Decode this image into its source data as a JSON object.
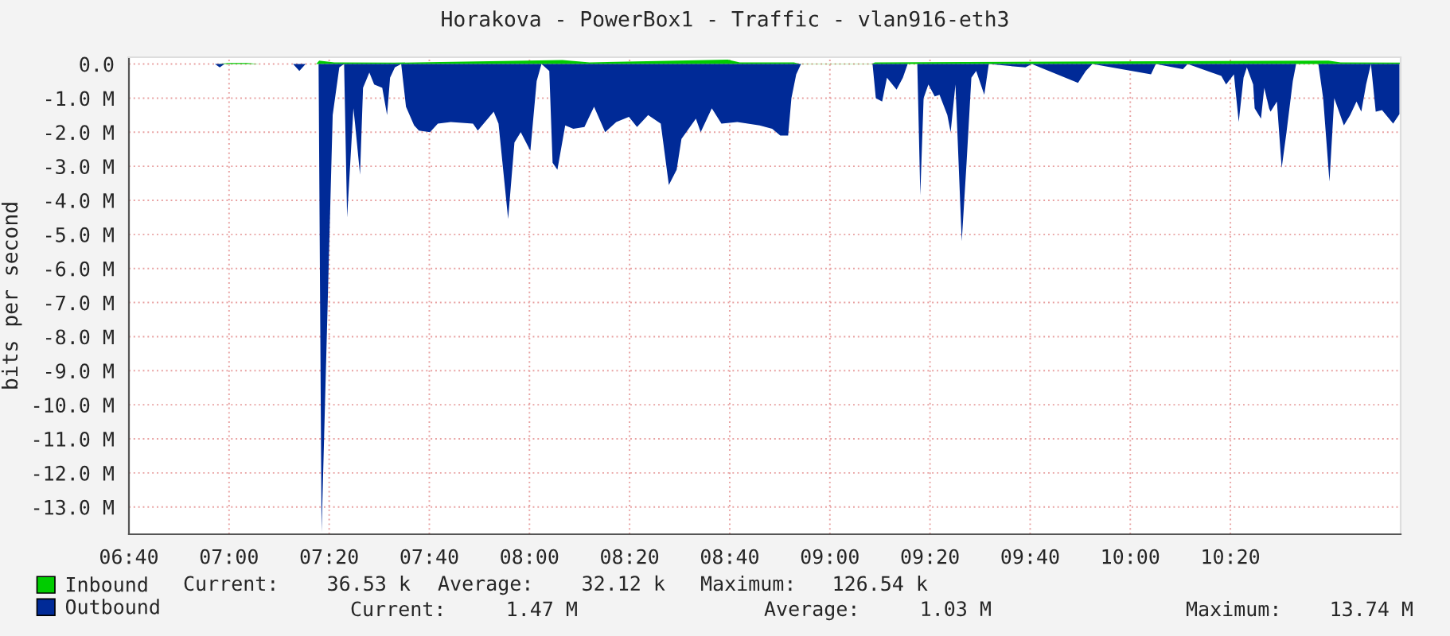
{
  "chart_data": {
    "type": "area",
    "title": "Horakova - PowerBox1 - Traffic - vlan916-eth3",
    "ylabel": "bits per second",
    "xlim": [
      6.6667,
      10.9
    ],
    "ylim": [
      -13.8,
      0.2
    ],
    "xticks": [
      {
        "value": 6.6667,
        "label": "06:40"
      },
      {
        "value": 7,
        "label": "07:00"
      },
      {
        "value": 7.3333,
        "label": "07:20"
      },
      {
        "value": 7.6667,
        "label": "07:40"
      },
      {
        "value": 8,
        "label": "08:00"
      },
      {
        "value": 8.3333,
        "label": "08:20"
      },
      {
        "value": 8.6667,
        "label": "08:40"
      },
      {
        "value": 9,
        "label": "09:00"
      },
      {
        "value": 9.3333,
        "label": "09:20"
      },
      {
        "value": 9.6667,
        "label": "09:40"
      },
      {
        "value": 10,
        "label": "10:00"
      },
      {
        "value": 10.3333,
        "label": "10:20"
      }
    ],
    "yticks": [
      {
        "value": 0,
        "label": "0.0"
      },
      {
        "value": -1,
        "label": "-1.0 M"
      },
      {
        "value": -2,
        "label": "-2.0 M"
      },
      {
        "value": -3,
        "label": "-3.0 M"
      },
      {
        "value": -4,
        "label": "-4.0 M"
      },
      {
        "value": -5,
        "label": "-5.0 M"
      },
      {
        "value": -6,
        "label": "-6.0 M"
      },
      {
        "value": -7,
        "label": "-7.0 M"
      },
      {
        "value": -8,
        "label": "-8.0 M"
      },
      {
        "value": -9,
        "label": "-9.0 M"
      },
      {
        "value": -10,
        "label": "-10.0 M"
      },
      {
        "value": -11,
        "label": "-11.0 M"
      },
      {
        "value": -12,
        "label": "-12.0 M"
      },
      {
        "value": -13,
        "label": "-13.0 M"
      }
    ],
    "grid": true,
    "legend": "bottom left",
    "annotations": [
      "Current:    36.53 k",
      "Average:    32.12 k",
      "Maximum:   126.54 k",
      "Current:     1.47 M",
      "Average:     1.03 M",
      "Maximum:    13.74 M"
    ],
    "series": [
      {
        "name": "Inbound",
        "color": "#00cc00",
        "x": [
          6.667,
          6.96,
          7.0,
          7.06,
          7.1,
          7.29,
          7.3,
          7.35,
          7.55,
          8.11,
          8.2,
          8.66,
          8.7,
          8.88,
          8.9,
          9.14,
          9.15,
          10.66,
          10.7,
          10.9
        ],
        "values": [
          0.0,
          0.0,
          0.03,
          0.03,
          0.0,
          0.0,
          0.1,
          0.05,
          0.04,
          0.12,
          0.05,
          0.13,
          0.05,
          0.05,
          0.01,
          0.01,
          0.05,
          0.1,
          0.05,
          0.04
        ]
      },
      {
        "name": "Outbound",
        "color": "#002a97",
        "x": [
          6.667,
          6.953,
          6.969,
          6.985,
          7.213,
          7.234,
          7.255,
          7.298,
          7.308,
          7.324,
          7.345,
          7.367,
          7.383,
          7.393,
          7.414,
          7.42,
          7.436,
          7.446,
          7.467,
          7.483,
          7.51,
          7.526,
          7.536,
          7.552,
          7.573,
          7.589,
          7.616,
          7.632,
          7.669,
          7.695,
          7.738,
          7.812,
          7.828,
          7.881,
          7.897,
          7.929,
          7.95,
          7.971,
          8.003,
          8.024,
          8.04,
          8.066,
          8.077,
          8.093,
          8.119,
          8.146,
          8.183,
          8.215,
          8.252,
          8.289,
          8.331,
          8.358,
          8.395,
          8.437,
          8.464,
          8.49,
          8.506,
          8.554,
          8.57,
          8.607,
          8.639,
          8.692,
          8.766,
          8.808,
          8.835,
          8.861,
          8.872,
          8.888,
          8.904,
          9.142,
          9.153,
          9.174,
          9.19,
          9.222,
          9.243,
          9.259,
          9.291,
          9.301,
          9.312,
          9.328,
          9.349,
          9.365,
          9.391,
          9.402,
          9.418,
          9.439,
          9.455,
          9.471,
          9.487,
          9.514,
          9.529,
          9.651,
          9.672,
          9.826,
          9.852,
          9.874,
          10.069,
          10.085,
          10.175,
          10.191,
          10.303,
          10.319,
          10.345,
          10.361,
          10.377,
          10.388,
          10.409,
          10.414,
          10.435,
          10.446,
          10.462,
          10.467,
          10.488,
          10.504,
          10.52,
          10.541,
          10.552,
          10.626,
          10.642,
          10.663,
          10.679,
          10.711,
          10.732,
          10.753,
          10.769,
          10.785,
          10.801,
          10.817,
          10.838,
          10.875,
          10.896
        ],
        "values": [
          0,
          0,
          -0.1,
          0,
          0,
          -0.2,
          0,
          0,
          -13.74,
          -8.45,
          -1.5,
          -0.1,
          0,
          -4.5,
          -1.3,
          -1.8,
          -3.25,
          -0.7,
          -0.25,
          -0.6,
          -0.7,
          -1.5,
          -0.4,
          -0.1,
          0,
          -1.25,
          -1.8,
          -1.95,
          -2.0,
          -1.75,
          -1.7,
          -1.75,
          -1.95,
          -1.4,
          -1.75,
          -4.55,
          -2.3,
          -2.0,
          -2.55,
          -0.5,
          0,
          -0.2,
          -2.9,
          -3.1,
          -1.8,
          -1.9,
          -1.85,
          -1.25,
          -2.0,
          -1.7,
          -1.55,
          -1.85,
          -1.5,
          -1.75,
          -3.55,
          -3.1,
          -2.2,
          -1.6,
          -2.0,
          -1.3,
          -1.75,
          -1.7,
          -1.8,
          -1.9,
          -2.1,
          -2.1,
          -1.0,
          -0.3,
          0,
          0,
          -1.0,
          -1.1,
          -0.4,
          -0.75,
          -0.4,
          0,
          0,
          -3.85,
          -1.0,
          -0.6,
          -0.95,
          -0.9,
          -1.5,
          -2.0,
          -0.6,
          -5.2,
          -2.9,
          -0.4,
          -0.2,
          -0.9,
          0,
          -0.1,
          0,
          -0.55,
          -0.2,
          0,
          -0.3,
          0,
          -0.15,
          0,
          -0.35,
          -0.6,
          -0.3,
          -1.7,
          -0.4,
          -0.1,
          -0.6,
          -1.3,
          -1.6,
          -0.7,
          -1.3,
          -1.4,
          -1.1,
          -3.05,
          -2.0,
          -0.5,
          0,
          0,
          -1.0,
          -3.45,
          -1.0,
          -1.8,
          -1.5,
          -1.1,
          -1.4,
          -0.6,
          0,
          -1.4,
          -1.35,
          -1.75,
          -1.47
        ]
      }
    ]
  }
}
